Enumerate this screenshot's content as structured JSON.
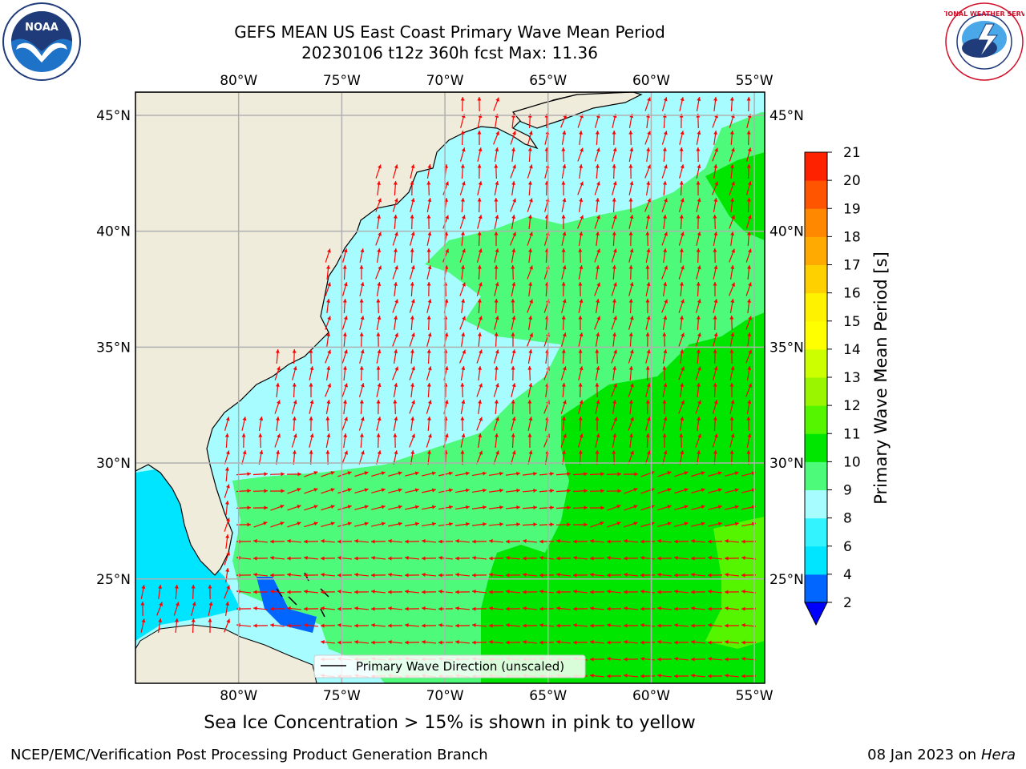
{
  "title_line1": "GEFS MEAN US East Coast Primary Wave Mean Period",
  "title_line2": "20230106 t12z 360h fcst   Max: 11.36",
  "map": {
    "lon_range": [
      -85,
      -54.5
    ],
    "lat_range": [
      20.5,
      46
    ],
    "lon_ticks": [
      {
        "value": -80,
        "label": "80°W"
      },
      {
        "value": -75,
        "label": "75°W"
      },
      {
        "value": -70,
        "label": "70°W"
      },
      {
        "value": -65,
        "label": "65°W"
      },
      {
        "value": -60,
        "label": "60°W"
      },
      {
        "value": -55,
        "label": "55°W"
      }
    ],
    "lat_ticks": [
      {
        "value": 45,
        "label": "45°N"
      },
      {
        "value": 40,
        "label": "40°N"
      },
      {
        "value": 35,
        "label": "35°N"
      },
      {
        "value": 30,
        "label": "30°N"
      },
      {
        "value": 25,
        "label": "25°N"
      }
    ],
    "land_color": "#efecdc",
    "grid_color": "#b0b0b0",
    "arrow_color": "#ff0000",
    "legend_label": "Primary Wave Direction (unscaled)"
  },
  "colorbar": {
    "label": "Primary Wave Mean Period [s]",
    "ticks": [
      "2",
      "4",
      "6",
      "8",
      "9",
      "10",
      "11",
      "12",
      "13",
      "14",
      "15",
      "16",
      "17",
      "18",
      "19",
      "20",
      "21"
    ],
    "colors": [
      "#0066ff",
      "#00e5ff",
      "#33f3ff",
      "#a6fcff",
      "#4dfa7a",
      "#00e600",
      "#55f500",
      "#99f500",
      "#ccff00",
      "#ffff00",
      "#fff200",
      "#ffd000",
      "#ffaa00",
      "#ff8800",
      "#ff5500",
      "#ff2200",
      "#ff0000"
    ],
    "extend_color": "#0000ff"
  },
  "sea_ice_note": "Sea Ice Concentration > 15% is shown in pink to yellow",
  "footer_left": "NCEP/EMC/Verification Post Processing Product Generation Branch",
  "footer_right_date": "08 Jan 2023 on ",
  "footer_right_host": "Hera",
  "logos": {
    "noaa_text": "NOAA",
    "nws_text": "NATIONAL WEATHER SERVICE"
  }
}
